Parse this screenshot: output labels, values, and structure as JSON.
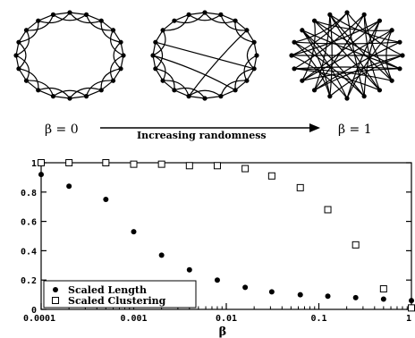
{
  "caption": {
    "left": "β = 0",
    "middle": "Increasing randomness",
    "right": "β = 1"
  },
  "chart_data": {
    "type": "scatter",
    "xscale": "log",
    "xlim": [
      0.0001,
      1
    ],
    "ylim": [
      0,
      1
    ],
    "xlabel": "β",
    "ylabel": "",
    "x_ticks": [
      "0.0001",
      "0.001",
      "0.01",
      "0.1",
      "1"
    ],
    "y_ticks": [
      "0",
      "0.2",
      "0.4",
      "0.6",
      "0.8",
      "1"
    ],
    "legend_position": "bottom-left",
    "grid": false,
    "series": [
      {
        "name": "Scaled Length",
        "marker": "filled-circle",
        "x": [
          0.0001,
          0.0002,
          0.0005,
          0.001,
          0.002,
          0.004,
          0.008,
          0.016,
          0.031,
          0.063,
          0.125,
          0.25,
          0.5,
          1
        ],
        "y": [
          0.92,
          0.84,
          0.75,
          0.53,
          0.37,
          0.27,
          0.2,
          0.15,
          0.12,
          0.1,
          0.09,
          0.08,
          0.07,
          0.06
        ]
      },
      {
        "name": "Scaled Clustering",
        "marker": "open-square",
        "x": [
          0.0001,
          0.0002,
          0.0005,
          0.001,
          0.002,
          0.004,
          0.008,
          0.016,
          0.031,
          0.063,
          0.125,
          0.25,
          0.5,
          1
        ],
        "y": [
          1.0,
          1.0,
          1.0,
          0.99,
          0.99,
          0.98,
          0.98,
          0.96,
          0.91,
          0.83,
          0.68,
          0.44,
          0.14,
          0.01
        ]
      }
    ]
  }
}
